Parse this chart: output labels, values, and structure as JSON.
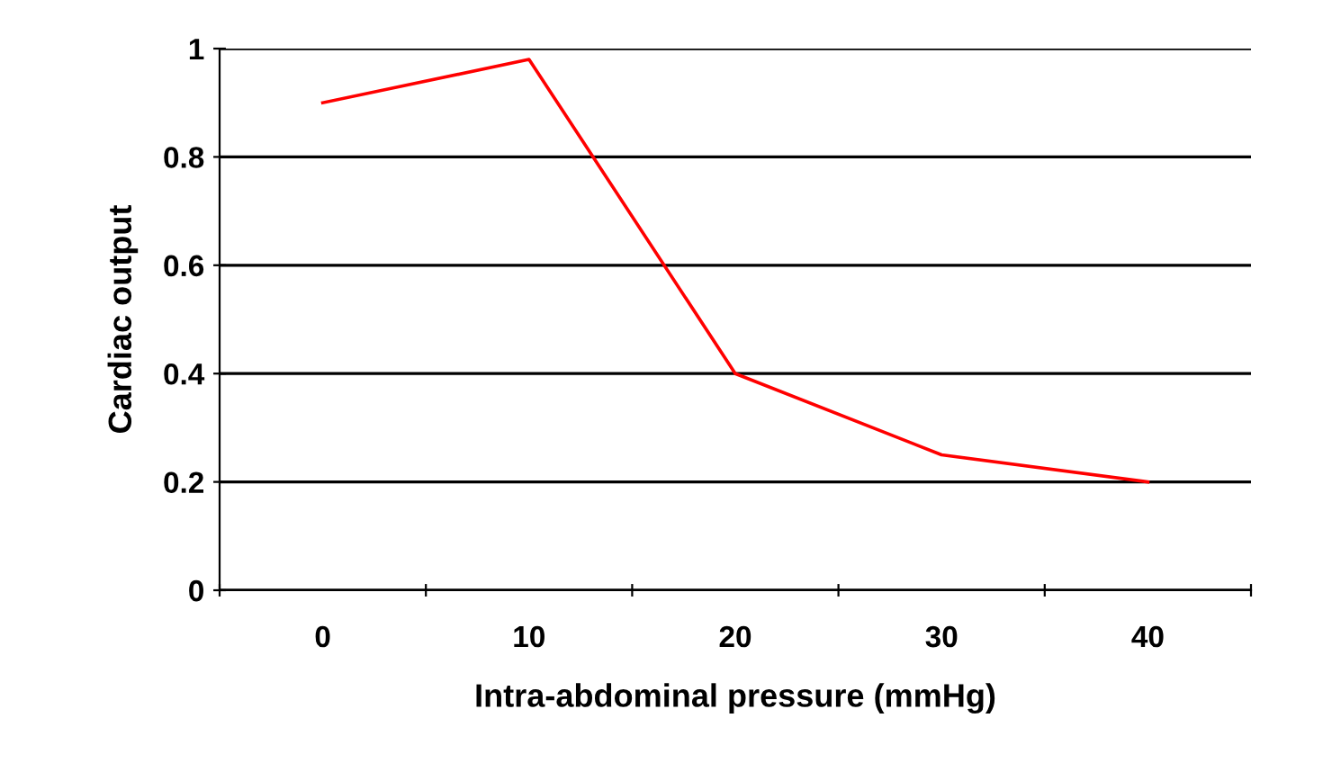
{
  "chart_data": {
    "type": "line",
    "xlabel": "Intra-abdominal pressure (mmHg)",
    "ylabel": "Cardiac output",
    "categories": [
      "0",
      "10",
      "20",
      "30",
      "40"
    ],
    "series": [
      {
        "color": "#ff0000",
        "values": [
          0.9,
          0.98,
          0.4,
          0.25,
          0.2
        ]
      }
    ],
    "ylim": [
      0,
      1
    ],
    "yticks": [
      0,
      0.2,
      0.4,
      0.6,
      0.8,
      1
    ],
    "grid": "y",
    "marker": "none",
    "line_style": "solid"
  }
}
